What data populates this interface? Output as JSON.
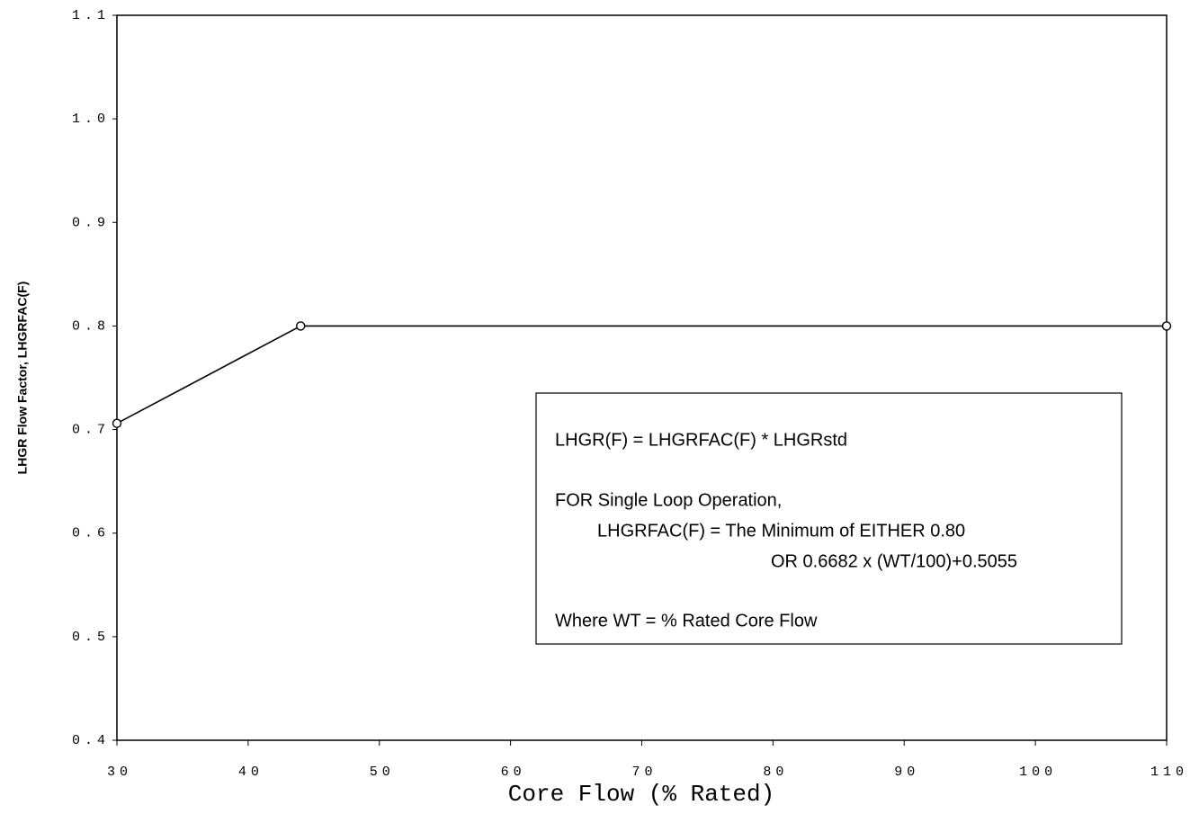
{
  "chart_data": {
    "type": "line",
    "x_label": "Core Flow (% Rated)",
    "y_label": "LHGR Flow Factor, LHGRFAC(F)",
    "series": [
      {
        "name": "LHGRFAC(F)",
        "color": "#000000",
        "x": [
          30,
          44,
          110
        ],
        "values": [
          0.706,
          0.8,
          0.8
        ]
      }
    ],
    "xlim": [
      30,
      110
    ],
    "xticks": [
      30,
      40,
      50,
      60,
      70,
      80,
      90,
      100,
      110
    ],
    "ylim": [
      0.4,
      1.1
    ],
    "yticks": [
      0.4,
      0.5,
      0.6,
      0.7,
      0.8,
      0.9,
      {
        "value": 1,
        "label": "1.0"
      },
      1.1
    ],
    "grid": false,
    "annotations": [
      "LHGR(F) = LHGRFAC(F) * LHGRstd",
      "FOR Single Loop Operation,",
      "LHGRFAC(F) = The Minimum of EITHER 0.80",
      "OR  0.6682 x (WT/100)+0.5055",
      "Where WT = % Rated Core Flow"
    ]
  }
}
